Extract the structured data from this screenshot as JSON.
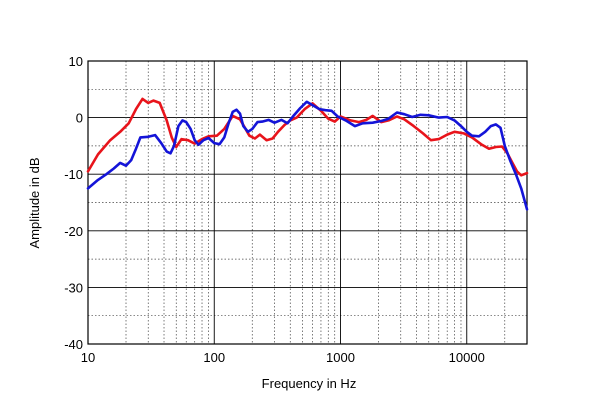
{
  "chart_data": {
    "type": "line",
    "title": "",
    "xlabel": "Frequency in Hz",
    "ylabel": "Amplitude in dB",
    "xscale": "log",
    "xlim": [
      10,
      30000
    ],
    "ylim": [
      -40,
      10
    ],
    "grid": true,
    "legend": "none",
    "x_tick_labels": [
      {
        "value": 10,
        "label": "10"
      },
      {
        "value": 100,
        "label": "100"
      },
      {
        "value": 1000,
        "label": "1000"
      },
      {
        "value": 10000,
        "label": "10000"
      }
    ],
    "y_tick_labels": [
      {
        "value": 10,
        "label": "10"
      },
      {
        "value": 0,
        "label": "0"
      },
      {
        "value": -10,
        "label": "-10"
      },
      {
        "value": -20,
        "label": "-20"
      },
      {
        "value": -30,
        "label": "-30"
      },
      {
        "value": -40,
        "label": "-40"
      }
    ],
    "series": [
      {
        "color": "#e8141b",
        "points": [
          [
            10,
            -9.5
          ],
          [
            12,
            -6.5
          ],
          [
            15,
            -4
          ],
          [
            18,
            -2.5
          ],
          [
            21,
            -1
          ],
          [
            24,
            1.5
          ],
          [
            27,
            3.3
          ],
          [
            30,
            2.6
          ],
          [
            33,
            3
          ],
          [
            37,
            2.6
          ],
          [
            42,
            -0.5
          ],
          [
            46,
            -3.5
          ],
          [
            50,
            -5.2
          ],
          [
            55,
            -3.8
          ],
          [
            62,
            -4
          ],
          [
            70,
            -4.6
          ],
          [
            80,
            -3.8
          ],
          [
            90,
            -3.3
          ],
          [
            105,
            -3.2
          ],
          [
            120,
            -2
          ],
          [
            140,
            0.3
          ],
          [
            160,
            -0.3
          ],
          [
            175,
            -1.8
          ],
          [
            190,
            -3.2
          ],
          [
            210,
            -3.7
          ],
          [
            230,
            -3
          ],
          [
            260,
            -4
          ],
          [
            290,
            -3.7
          ],
          [
            320,
            -2.5
          ],
          [
            360,
            -1.3
          ],
          [
            400,
            -0.5
          ],
          [
            450,
            0
          ],
          [
            520,
            1.5
          ],
          [
            600,
            2.5
          ],
          [
            700,
            1.2
          ],
          [
            800,
            -0.2
          ],
          [
            900,
            -0.7
          ],
          [
            1000,
            0.2
          ],
          [
            1200,
            -0.5
          ],
          [
            1400,
            -0.8
          ],
          [
            1600,
            -0.4
          ],
          [
            1800,
            0.3
          ],
          [
            2100,
            -0.8
          ],
          [
            2400,
            -0.5
          ],
          [
            2800,
            0.2
          ],
          [
            3200,
            -0.3
          ],
          [
            3800,
            -1.5
          ],
          [
            4500,
            -2.8
          ],
          [
            5200,
            -4
          ],
          [
            6000,
            -3.8
          ],
          [
            7000,
            -3
          ],
          [
            8000,
            -2.5
          ],
          [
            9500,
            -2.8
          ],
          [
            11000,
            -3.5
          ],
          [
            13000,
            -4.7
          ],
          [
            15000,
            -5.5
          ],
          [
            17000,
            -5.2
          ],
          [
            19000,
            -5.1
          ],
          [
            21000,
            -6.3
          ],
          [
            23000,
            -8
          ],
          [
            25000,
            -9.5
          ],
          [
            27000,
            -10.2
          ],
          [
            30000,
            -9.8
          ]
        ]
      },
      {
        "color": "#1414d8",
        "points": [
          [
            10,
            -12.5
          ],
          [
            12,
            -11
          ],
          [
            14,
            -10
          ],
          [
            16,
            -9
          ],
          [
            18,
            -8
          ],
          [
            20,
            -8.5
          ],
          [
            22,
            -7.5
          ],
          [
            24,
            -5.5
          ],
          [
            26,
            -3.5
          ],
          [
            30,
            -3.4
          ],
          [
            34,
            -3.1
          ],
          [
            38,
            -4.5
          ],
          [
            42,
            -6
          ],
          [
            45,
            -6.3
          ],
          [
            48,
            -5
          ],
          [
            52,
            -1.5
          ],
          [
            56,
            -0.5
          ],
          [
            60,
            -0.8
          ],
          [
            65,
            -2
          ],
          [
            70,
            -4
          ],
          [
            75,
            -4.8
          ],
          [
            82,
            -4
          ],
          [
            90,
            -3.6
          ],
          [
            100,
            -4.5
          ],
          [
            110,
            -4.7
          ],
          [
            120,
            -3.5
          ],
          [
            130,
            -1
          ],
          [
            140,
            1
          ],
          [
            150,
            1.4
          ],
          [
            160,
            0.7
          ],
          [
            170,
            -1.5
          ],
          [
            185,
            -2.5
          ],
          [
            200,
            -2
          ],
          [
            220,
            -0.8
          ],
          [
            240,
            -0.7
          ],
          [
            270,
            -0.4
          ],
          [
            300,
            -0.9
          ],
          [
            340,
            -0.4
          ],
          [
            380,
            -1
          ],
          [
            420,
            0.2
          ],
          [
            480,
            1.7
          ],
          [
            540,
            2.8
          ],
          [
            600,
            2.2
          ],
          [
            680,
            1.5
          ],
          [
            760,
            1.3
          ],
          [
            850,
            1.2
          ],
          [
            950,
            0.2
          ],
          [
            1100,
            -0.5
          ],
          [
            1300,
            -1.5
          ],
          [
            1500,
            -1
          ],
          [
            1800,
            -0.9
          ],
          [
            2100,
            -0.6
          ],
          [
            2400,
            -0.2
          ],
          [
            2800,
            0.9
          ],
          [
            3200,
            0.6
          ],
          [
            3700,
            0.1
          ],
          [
            4300,
            0.5
          ],
          [
            5000,
            0.4
          ],
          [
            6000,
            0
          ],
          [
            7000,
            0.1
          ],
          [
            8000,
            -0.5
          ],
          [
            9000,
            -1.5
          ],
          [
            10000,
            -2.5
          ],
          [
            11000,
            -3.2
          ],
          [
            12500,
            -3.3
          ],
          [
            14000,
            -2.5
          ],
          [
            15500,
            -1.5
          ],
          [
            17000,
            -1.2
          ],
          [
            18500,
            -1.8
          ],
          [
            20000,
            -5
          ],
          [
            22000,
            -7.5
          ],
          [
            24500,
            -10
          ],
          [
            27000,
            -12.5
          ],
          [
            30000,
            -16.2
          ]
        ]
      }
    ]
  }
}
